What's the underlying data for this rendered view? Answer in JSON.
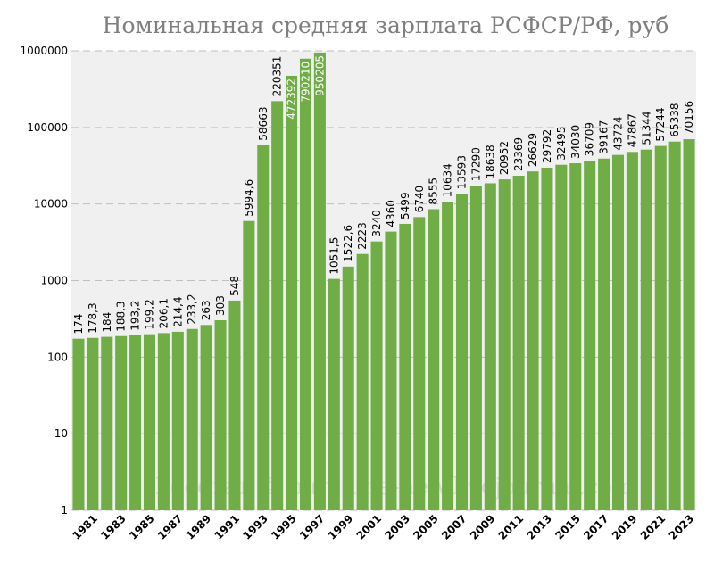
{
  "chart_data": {
    "type": "bar",
    "title": "Номинальная средняя зарплата РСФСР/РФ, руб",
    "annotation": "Росстат © burckina-new.livejournal.com",
    "categories": [
      null,
      "1981",
      null,
      "1983",
      null,
      "1985",
      null,
      "1987",
      null,
      "1989",
      null,
      "1991",
      null,
      "1993",
      null,
      "1995",
      null,
      "1997",
      null,
      "1999",
      null,
      "2001",
      null,
      "2003",
      null,
      "2005",
      null,
      "2007",
      null,
      "2009",
      null,
      "2011",
      null,
      "2013",
      null,
      "2015",
      null,
      "2017",
      null,
      "2019",
      null,
      "2021",
      null,
      "2023"
    ],
    "values": [
      174,
      178.3,
      184,
      188.3,
      193.2,
      199.2,
      206.1,
      214.4,
      233.2,
      263,
      303,
      548,
      5994.6,
      58663,
      220351,
      472392,
      790210,
      950205,
      1051.5,
      1522.6,
      2223,
      3240,
      4360,
      5499,
      6740,
      8555,
      10634,
      13593,
      17290,
      18638,
      20952,
      23369,
      26629,
      29792,
      32495,
      34030,
      36709,
      39167,
      43724,
      47867,
      51344,
      57244,
      65338,
      70156
    ],
    "value_labels": [
      "174",
      "178,3",
      "184",
      "188,3",
      "193,2",
      "199,2",
      "206,1",
      "214,4",
      "233,2",
      "263",
      "303",
      "548",
      "5994,6",
      "58663",
      "220351",
      "472392",
      "790210",
      "950205",
      "1051,5",
      "1522,6",
      "2223",
      "3240",
      "4360",
      "5499",
      "6740",
      "8555",
      "10634",
      "13593",
      "17290",
      "18638",
      "20952",
      "23369",
      "26629",
      "29792",
      "32495",
      "34030",
      "36709",
      "39167",
      "43724",
      "47867",
      "51344",
      "57244",
      "65338",
      "70156"
    ],
    "color": "#70ad47",
    "log_scale": true,
    "ylim": [
      1,
      1000000
    ],
    "yticks": [
      1,
      10,
      100,
      1000,
      10000,
      100000,
      1000000
    ],
    "grid": true
  }
}
